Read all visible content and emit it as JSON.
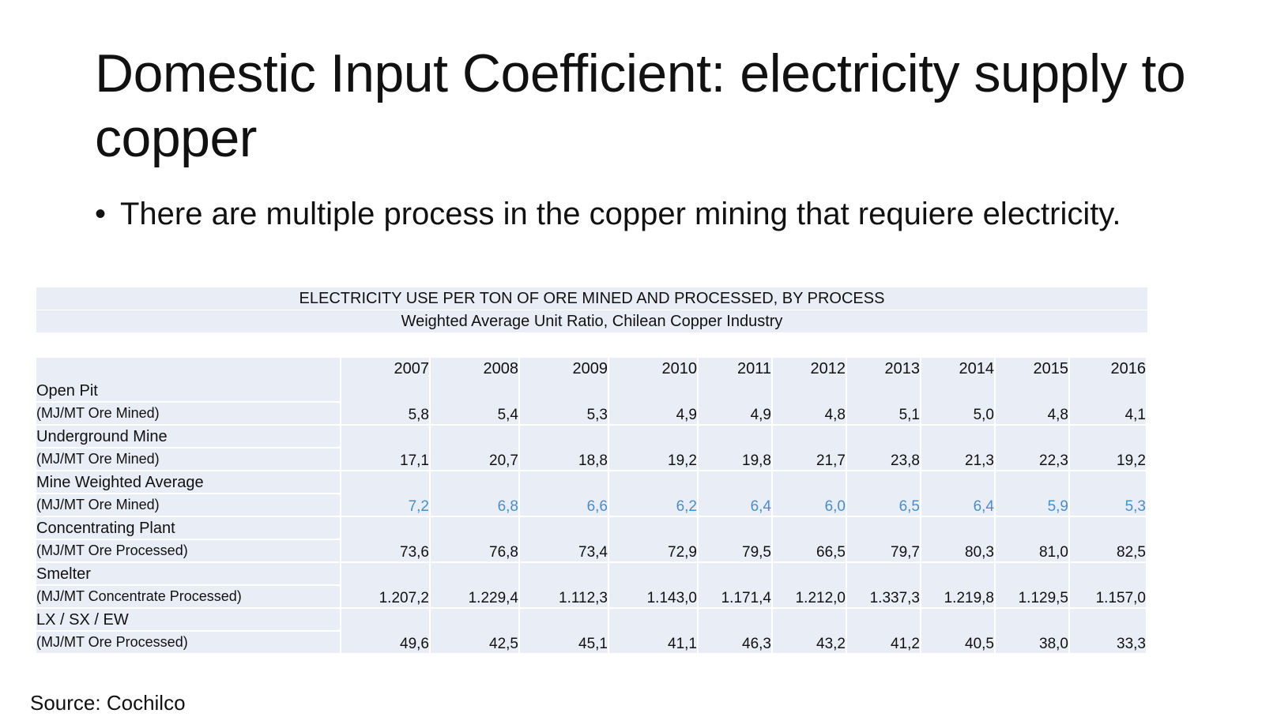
{
  "slide": {
    "title": "Domestic Input Coefficient: electricity supply to copper",
    "bullet": "There are multiple process in the copper mining that requiere electricity.",
    "source": "Source: Cochilco"
  },
  "table": {
    "caption_line1": "ELECTRICITY USE PER TON OF ORE MINED AND PROCESSED, BY PROCESS",
    "caption_line2": "Weighted Average Unit Ratio, Chilean Copper Industry",
    "years": [
      "2007",
      "2008",
      "2009",
      "2010",
      "2011",
      "2012",
      "2013",
      "2014",
      "2015",
      "2016"
    ],
    "rows": [
      {
        "name": "Open Pit",
        "unit": "(MJ/MT Ore Mined)",
        "values": [
          "5,8",
          "5,4",
          "5,3",
          "4,9",
          "4,9",
          "4,8",
          "5,1",
          "5,0",
          "4,8",
          "4,1"
        ]
      },
      {
        "name": "Underground Mine",
        "unit": "(MJ/MT Ore Mined)",
        "values": [
          "17,1",
          "20,7",
          "18,8",
          "19,2",
          "19,8",
          "21,7",
          "23,8",
          "21,3",
          "22,3",
          "19,2"
        ]
      },
      {
        "name": "Mine Weighted Average",
        "unit": "(MJ/MT Ore Mined)",
        "values": [
          "7,2",
          "6,8",
          "6,6",
          "6,2",
          "6,4",
          "6,0",
          "6,5",
          "6,4",
          "5,9",
          "5,3"
        ]
      },
      {
        "name": "Concentrating Plant",
        "unit": "(MJ/MT Ore Processed)",
        "values": [
          "73,6",
          "76,8",
          "73,4",
          "72,9",
          "79,5",
          "66,5",
          "79,7",
          "80,3",
          "81,0",
          "82,5"
        ]
      },
      {
        "name": "Smelter",
        "unit": "(MJ/MT Concentrate Processed)",
        "values": [
          "1.207,2",
          "1.229,4",
          "1.112,3",
          "1.143,0",
          "1.171,4",
          "1.212,0",
          "1.337,3",
          "1.219,8",
          "1.129,5",
          "1.157,0"
        ]
      },
      {
        "name": "LX / SX / EW",
        "unit": "(MJ/MT Ore Processed)",
        "values": [
          "49,6",
          "42,5",
          "45,1",
          "41,1",
          "46,3",
          "43,2",
          "41,2",
          "40,5",
          "38,0",
          "33,3"
        ]
      }
    ]
  }
}
